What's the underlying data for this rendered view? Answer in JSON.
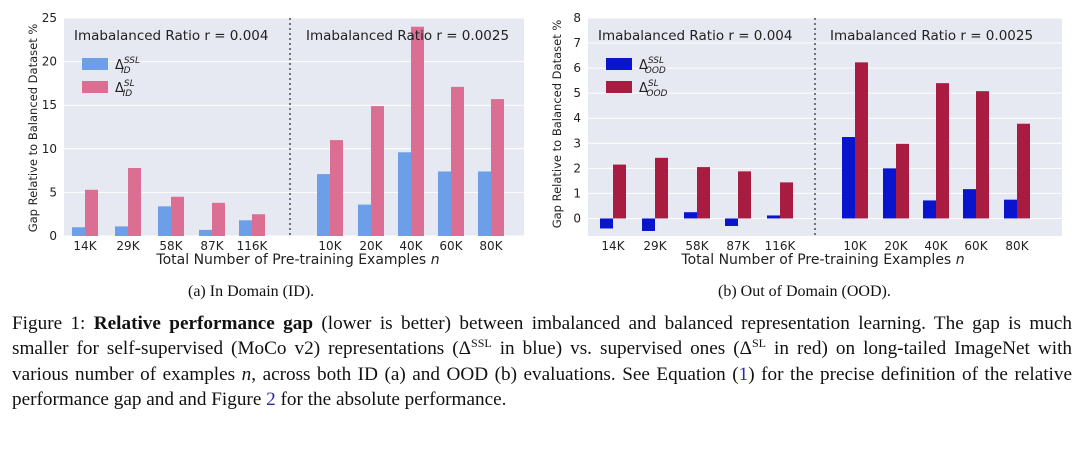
{
  "chart_data": [
    {
      "type": "bar",
      "subcaption": "(a) In Domain (ID).",
      "ylabel": "Gap Relative to Balanced Dataset %",
      "xlabel_text": "Total Number of Pre-training Examples ",
      "xlabel_var": "n",
      "ylim": [
        0,
        25
      ],
      "yticks": [
        "0",
        "5",
        "10",
        "15",
        "20",
        "25"
      ],
      "colors": {
        "ssl": "#6c9fe8",
        "sl": "#db6f93"
      },
      "legend": [
        {
          "base": "Δ",
          "sup": "SSL",
          "sub": "ID"
        },
        {
          "base": "Δ",
          "sup": "SL",
          "sub": "ID"
        }
      ],
      "groups": [
        {
          "title": "Imabalanced Ratio r = 0.004",
          "categories": [
            "14K",
            "29K",
            "58K",
            "87K",
            "116K"
          ],
          "series": [
            {
              "name": "SSL",
              "values": [
                1.0,
                1.1,
                3.4,
                0.7,
                1.8
              ]
            },
            {
              "name": "SL",
              "values": [
                5.3,
                7.8,
                4.5,
                3.8,
                2.5
              ]
            }
          ]
        },
        {
          "title": "Imabalanced Ratio r = 0.0025",
          "categories": [
            "10K",
            "20K",
            "40K",
            "60K",
            "80K"
          ],
          "series": [
            {
              "name": "SSL",
              "values": [
                7.1,
                3.6,
                9.6,
                7.4,
                7.4
              ]
            },
            {
              "name": "SL",
              "values": [
                11.0,
                14.9,
                24.0,
                17.1,
                15.7
              ]
            }
          ]
        }
      ]
    },
    {
      "type": "bar",
      "subcaption": "(b) Out of Domain (OOD).",
      "ylabel": "Gap Relative to Balanced Dataset %",
      "xlabel_text": "Total Number of Pre-training Examples ",
      "xlabel_var": "n",
      "ylim": [
        -0.7,
        8
      ],
      "yticks": [
        "0",
        "1",
        "2",
        "3",
        "4",
        "5",
        "6",
        "7",
        "8"
      ],
      "colors": {
        "ssl": "#0a14cc",
        "sl": "#a81c42"
      },
      "legend": [
        {
          "base": "Δ",
          "sup": "SSL",
          "sub": "OOD"
        },
        {
          "base": "Δ",
          "sup": "SL",
          "sub": "OOD"
        }
      ],
      "groups": [
        {
          "title": "Imabalanced Ratio r = 0.004",
          "categories": [
            "14K",
            "29K",
            "58K",
            "87K",
            "116K"
          ],
          "series": [
            {
              "name": "SSL",
              "values": [
                -0.4,
                -0.5,
                0.25,
                -0.3,
                0.12
              ]
            },
            {
              "name": "SL",
              "values": [
                2.15,
                2.42,
                2.05,
                1.88,
                1.44
              ]
            }
          ]
        },
        {
          "title": "Imabalanced Ratio r = 0.0025",
          "categories": [
            "10K",
            "20K",
            "40K",
            "60K",
            "80K"
          ],
          "series": [
            {
              "name": "SSL",
              "values": [
                3.25,
                2.0,
                0.72,
                1.17,
                0.75
              ]
            },
            {
              "name": "SL",
              "values": [
                6.23,
                2.98,
                5.4,
                5.08,
                3.78
              ]
            }
          ]
        }
      ]
    }
  ],
  "caption": {
    "label": "Figure 1: ",
    "bold": "Relative performance gap",
    "p1": " (lower is better) between imbalanced and balanced representation learning. The gap is much smaller for self-supervised (MoCo v2) representations (Δ",
    "sup1": "SSL",
    "p2": " in blue) vs. supervised ones (Δ",
    "sup2": "SL",
    "p3": " in red) on long-tailed ImageNet with various number of examples ",
    "var_n": "n",
    "p4": ", across both ID (a) and OOD (b) evaluations. See Equation (",
    "eq_ref": "1",
    "p5": ") for the precise definition of the relative performance gap and and Figure ",
    "fig_ref": "2",
    "p6": " for the absolute performance."
  }
}
